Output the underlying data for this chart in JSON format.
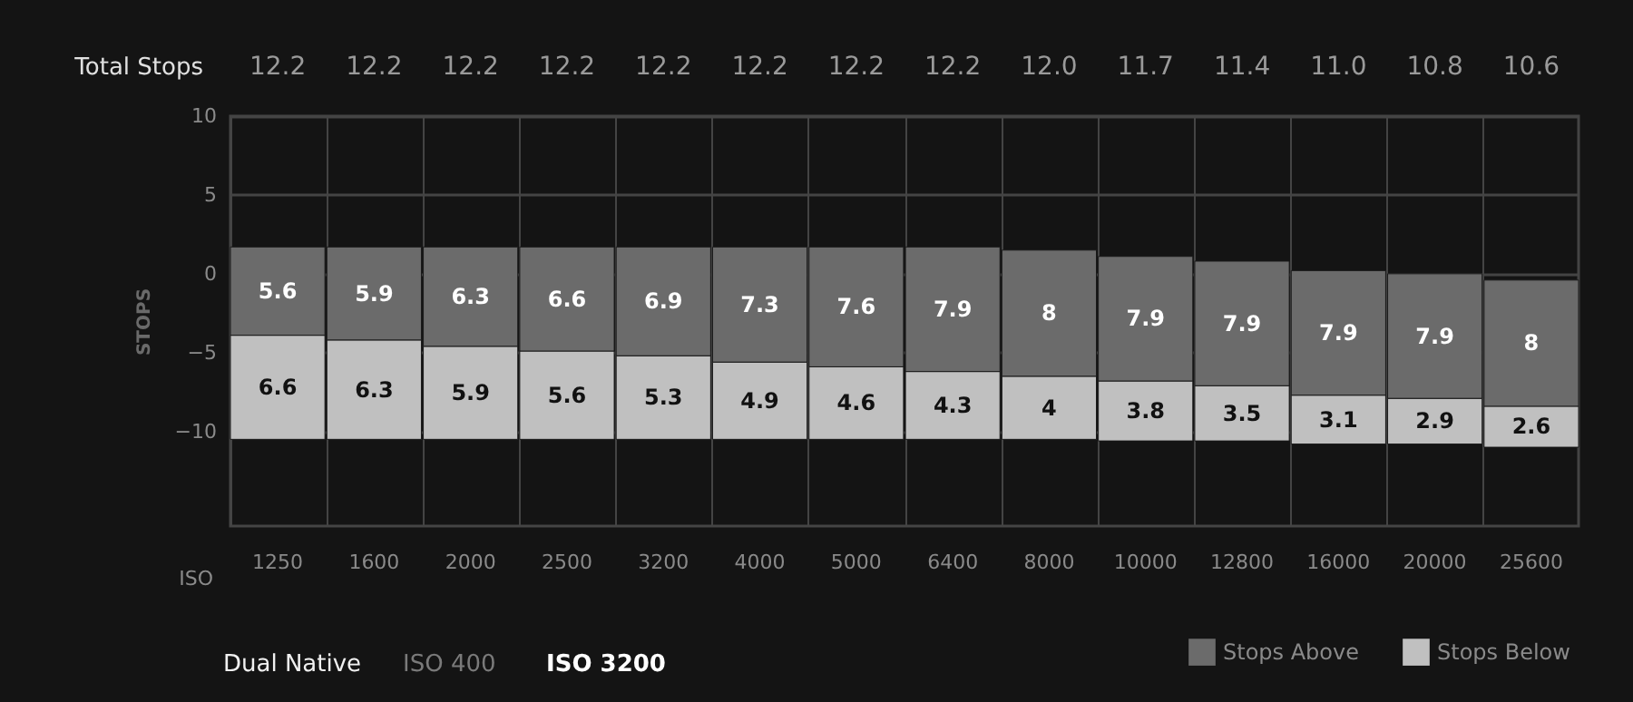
{
  "chart_data": {
    "type": "bar",
    "categories": [
      "1250",
      "1600",
      "2000",
      "2500",
      "3200",
      "4000",
      "5000",
      "6400",
      "8000",
      "10000",
      "12800",
      "16000",
      "20000",
      "25600"
    ],
    "series": [
      {
        "name": "Stops Below",
        "color": "#c0c0c0",
        "values": [
          6.6,
          6.3,
          5.9,
          5.6,
          5.3,
          4.9,
          4.6,
          4.3,
          4,
          3.8,
          3.5,
          3.1,
          2.9,
          2.6
        ],
        "base": [
          -10.5,
          -10.5,
          -10.5,
          -10.5,
          -10.5,
          -10.5,
          -10.5,
          -10.5,
          -10.5,
          -10.6,
          -10.6,
          -10.8,
          -10.8,
          -11.0
        ]
      },
      {
        "name": "Stops Above",
        "color": "#6b6b6b",
        "values": [
          5.6,
          5.9,
          6.3,
          6.6,
          6.9,
          7.3,
          7.6,
          7.9,
          8,
          7.9,
          7.9,
          7.9,
          7.9,
          8
        ],
        "base": [
          -3.9,
          -4.2,
          -4.6,
          -4.9,
          -5.2,
          -5.6,
          -5.9,
          -6.2,
          -6.5,
          -6.8,
          -7.1,
          -7.7,
          -7.9,
          -8.4
        ]
      }
    ],
    "data_labels": true,
    "xlabel": "ISO",
    "ylabel": "STOPS",
    "ylim": [
      -16,
      10
    ],
    "yticks": [
      10,
      5,
      0,
      -5,
      -10
    ],
    "grid": true,
    "legend": "bottom right",
    "annotations": [
      "Total Stops",
      "12.2",
      "12.2",
      "12.2",
      "12.2",
      "12.2",
      "12.2",
      "12.2",
      "12.2",
      "12.0",
      "11.7",
      "11.4",
      "11.0",
      "10.8",
      "10.6",
      "Dual Native",
      "ISO 400",
      "ISO 3200"
    ]
  }
}
